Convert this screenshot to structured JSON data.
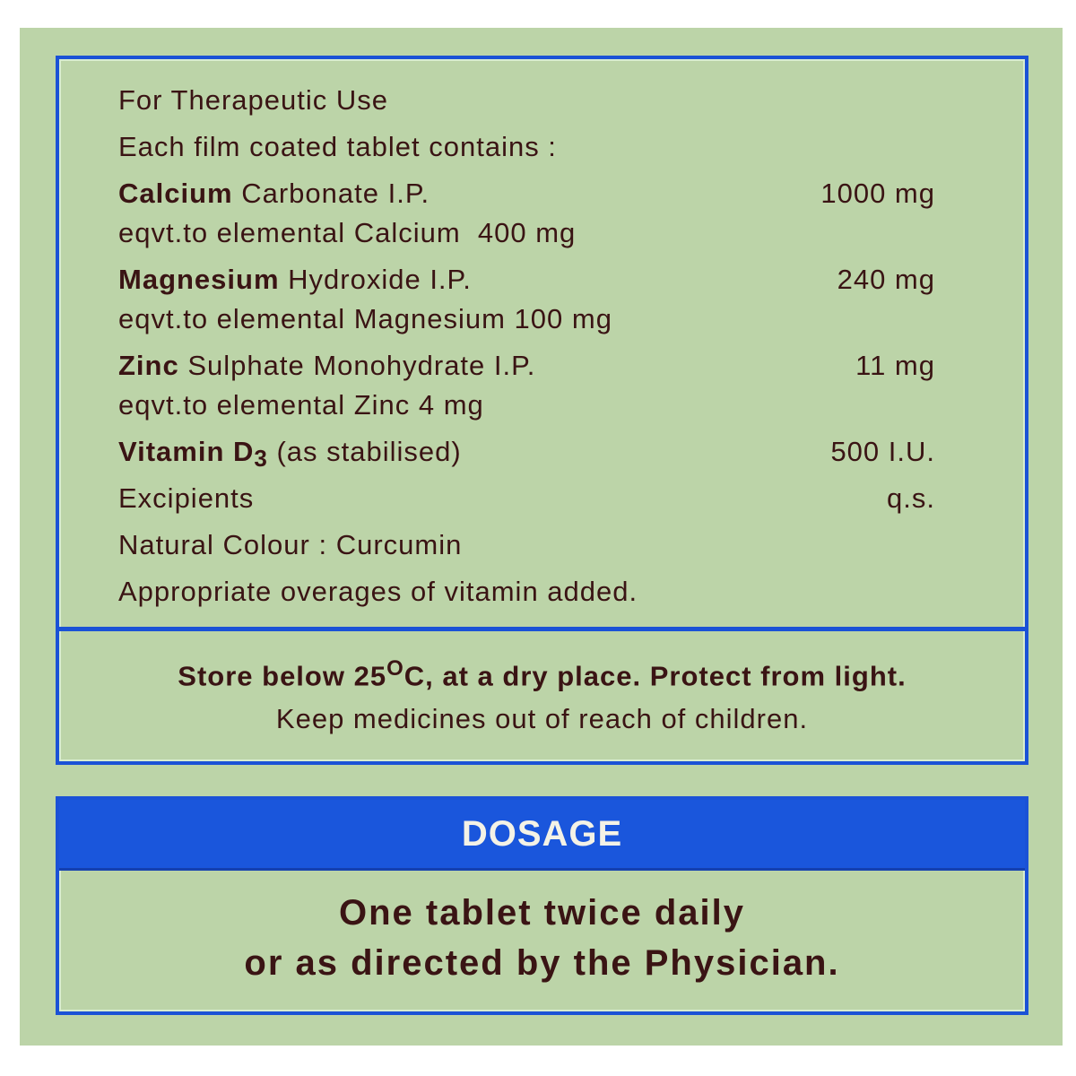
{
  "colors": {
    "background": "#bcd4a8",
    "border_blue": "#1a52d6",
    "text": "#3a1414",
    "header_text": "#f4f2e6"
  },
  "composition": {
    "intro": "For Therapeutic Use",
    "subtitle": "Each film coated tablet contains :",
    "items": [
      {
        "bold": "Calcium",
        "rest": " Carbonate I.P.",
        "amount": "1000 mg",
        "equiv": "eqvt.to elemental Calcium  400 mg"
      },
      {
        "bold": "Magnesium",
        "rest": " Hydroxide I.P.",
        "amount": "240 mg",
        "equiv": "eqvt.to elemental Magnesium 100 mg"
      },
      {
        "bold": "Zinc",
        "rest": " Sulphate Monohydrate I.P.",
        "amount": "11 mg",
        "equiv": "eqvt.to elemental Zinc 4 mg"
      }
    ],
    "vitamin": {
      "bold": "Vitamin D",
      "sub": "3",
      "rest": " (as stabilised)",
      "amount": "500 I.U."
    },
    "excipients": {
      "label": "Excipients",
      "amount": "q.s."
    },
    "colour": "Natural Colour : Curcumin",
    "overages": "Appropriate overages of vitamin added."
  },
  "storage": {
    "line1_a": "Store below 25",
    "line1_sup": "O",
    "line1_b": "C, at a dry place. Protect from light.",
    "line2": "Keep medicines out of reach of children."
  },
  "dosage": {
    "title": "DOSAGE",
    "line1": "One tablet twice daily",
    "line2": "or as directed by the Physician."
  }
}
